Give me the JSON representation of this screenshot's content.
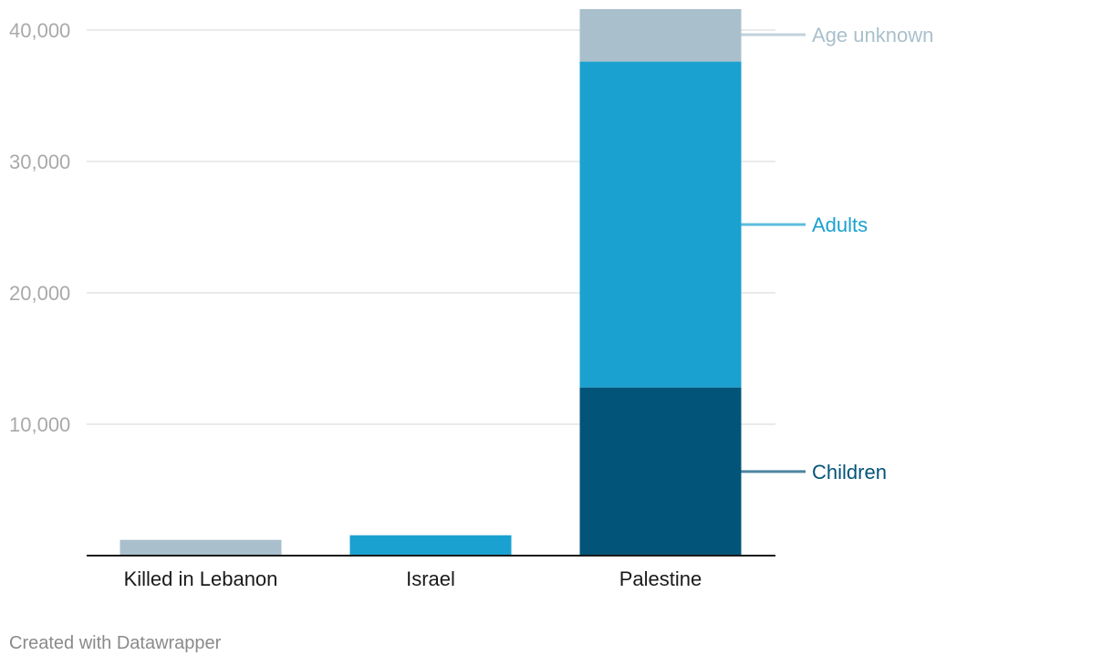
{
  "chart_data": {
    "type": "bar",
    "stacked": true,
    "title": "",
    "xlabel": "",
    "ylabel": "",
    "ylim": [
      0,
      42000
    ],
    "yticks": [
      10000,
      20000,
      30000,
      40000
    ],
    "ytick_labels": [
      "10,000",
      "20,000",
      "30,000",
      "40,000"
    ],
    "grid": true,
    "categories": [
      "Killed in Lebanon",
      "Israel",
      "Palestine"
    ],
    "series": [
      {
        "name": "Children",
        "color": "#035479",
        "values": [
          0,
          0,
          12800
        ]
      },
      {
        "name": "Adults",
        "color": "#1aa1cf",
        "values": [
          0,
          1550,
          24800
        ]
      },
      {
        "name": "Age unknown",
        "color": "#a9c0cc",
        "values": [
          1200,
          0,
          4000
        ]
      }
    ],
    "legend_placement": "right, inline labels",
    "label_colors": {
      "Children": "#035479",
      "Adults": "#1aa1cf",
      "Age unknown": "#a9c0cc"
    }
  },
  "footer": {
    "credit": "Created with Datawrapper"
  }
}
